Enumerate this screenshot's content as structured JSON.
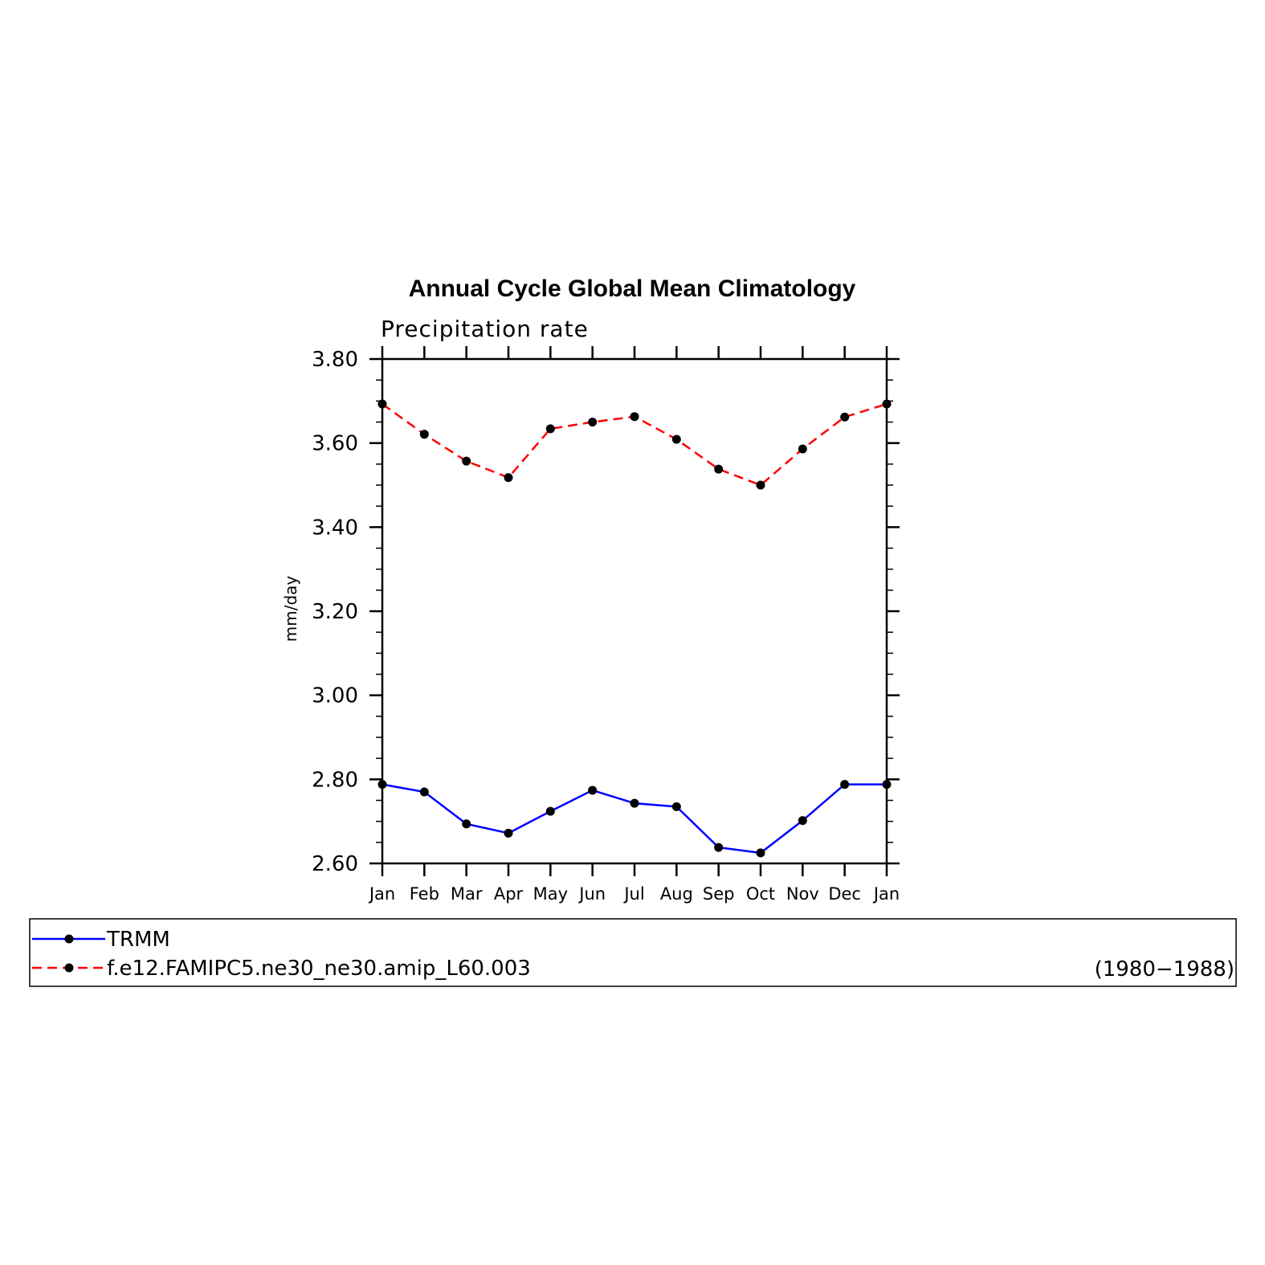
{
  "chart_data": {
    "type": "line",
    "title": "Annual Cycle Global Mean Climatology",
    "subtitle": "Precipitation rate",
    "ylabel": "mm/day",
    "xlabel": "",
    "categories": [
      "Jan",
      "Feb",
      "Mar",
      "Apr",
      "May",
      "Jun",
      "Jul",
      "Aug",
      "Sep",
      "Oct",
      "Nov",
      "Dec",
      "Jan"
    ],
    "ylim": [
      2.6,
      3.8
    ],
    "yticks": [
      2.6,
      2.8,
      3.0,
      3.2,
      3.4,
      3.6,
      3.8
    ],
    "ytick_labels": [
      "2.60",
      "2.80",
      "3.00",
      "3.20",
      "3.40",
      "3.60",
      "3.80"
    ],
    "series": [
      {
        "name": "TRMM",
        "color": "#0000ff",
        "dash": "solid",
        "values": [
          2.788,
          2.77,
          2.694,
          2.672,
          2.724,
          2.774,
          2.743,
          2.735,
          2.638,
          2.625,
          2.702,
          2.788,
          2.788
        ]
      },
      {
        "name": "f.e12.FAMIPC5.ne30_ne30.amip_L60.003",
        "color": "#ff0000",
        "dash": "dashed",
        "values": [
          3.693,
          3.621,
          3.557,
          3.518,
          3.634,
          3.65,
          3.663,
          3.609,
          3.538,
          3.5,
          3.586,
          3.662,
          3.693
        ]
      }
    ],
    "legend_note": "(1980−1988)",
    "legend_position": "bottom",
    "marker_color": "#000000",
    "grid": false
  }
}
